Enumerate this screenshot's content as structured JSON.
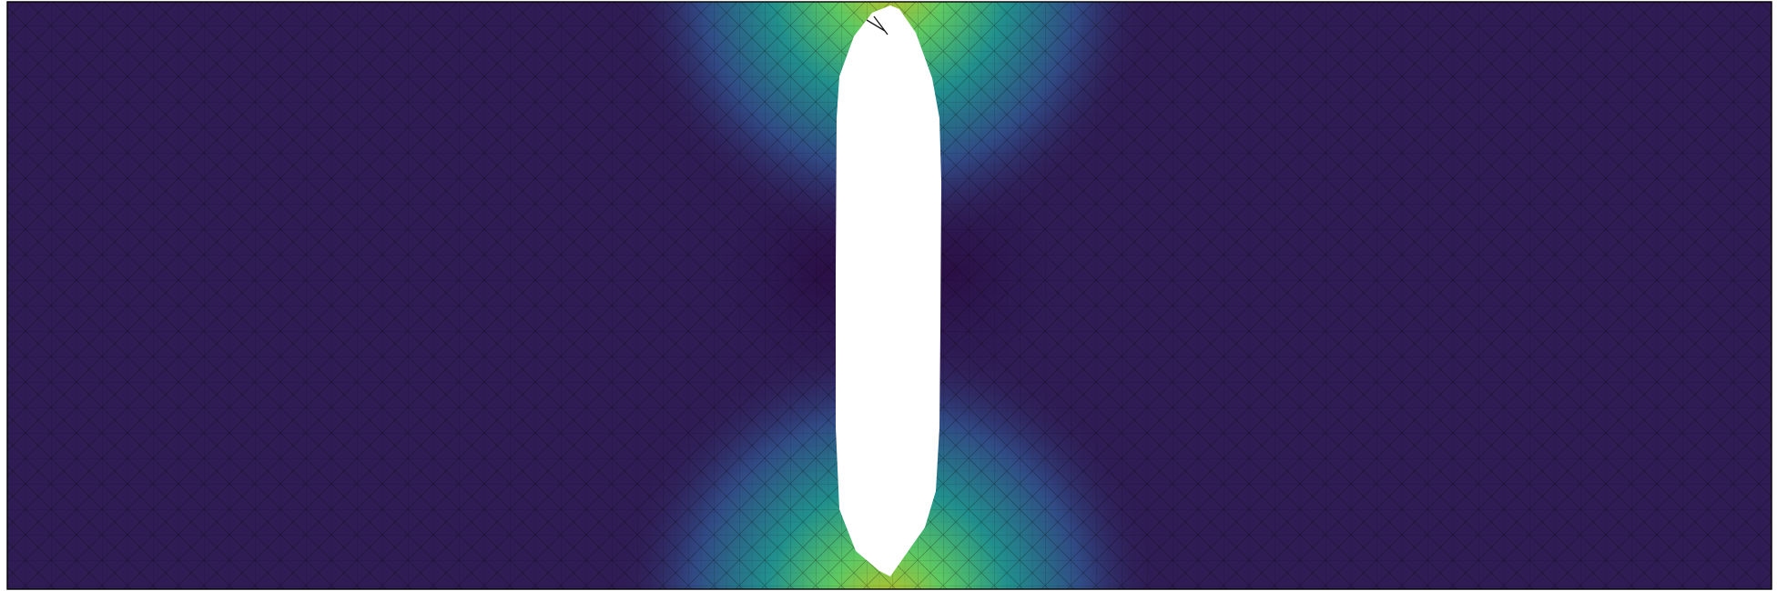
{
  "figure": {
    "kind": "finite-element mesh with scalar field (stress concentration around slot)",
    "colormap": "viridis",
    "colors": {
      "background": "#ffffff",
      "low": "#2f1c55",
      "deep": "#2a0f45",
      "mid_blue": "#314a85",
      "teal": "#21908d",
      "green": "#5ec962",
      "yellow": "#c8c01f",
      "outline": "#000000",
      "hole": "#ffffff"
    },
    "grid": true,
    "legend": "none"
  }
}
